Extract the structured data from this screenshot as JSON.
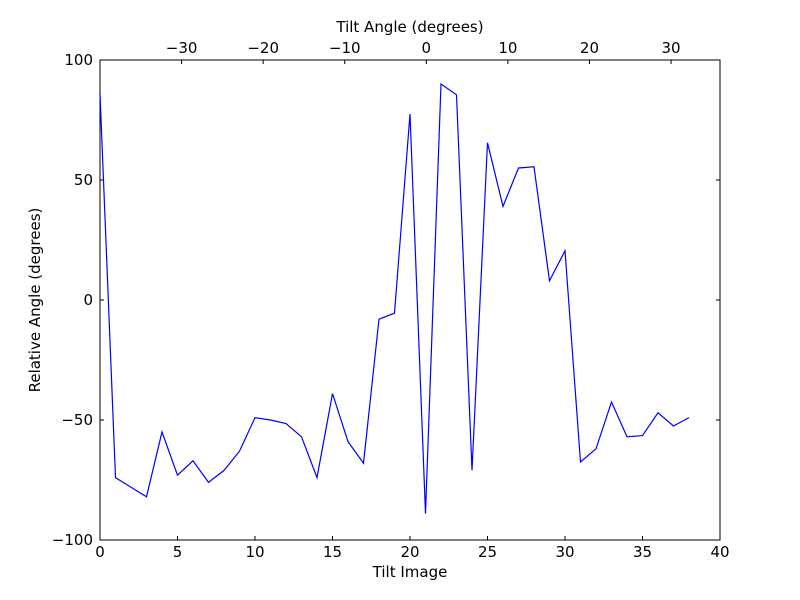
{
  "chart_data": {
    "type": "line",
    "title": "",
    "xlabel": "Tilt Image",
    "ylabel": "Relative Angle (degrees)",
    "top_xlabel": "Tilt Angle (degrees)",
    "xlim": [
      0,
      40
    ],
    "ylim": [
      -100,
      100
    ],
    "top_xlim": [
      -40,
      36
    ],
    "xticks": [
      0,
      5,
      10,
      15,
      20,
      25,
      30,
      35,
      40
    ],
    "yticks": [
      -100,
      -50,
      0,
      50,
      100
    ],
    "top_xticks": [
      -30,
      -20,
      -10,
      0,
      10,
      20,
      30
    ],
    "xtick_labels": [
      "0",
      "5",
      "10",
      "15",
      "20",
      "25",
      "30",
      "35",
      "40"
    ],
    "ytick_labels": [
      "−100",
      "−50",
      "0",
      "50",
      "100"
    ],
    "top_xtick_labels": [
      "−30",
      "−20",
      "−10",
      "0",
      "10",
      "20",
      "30"
    ],
    "grid": false,
    "line_color": "#0000ff",
    "series": [
      {
        "x": [
          0,
          1,
          2,
          3,
          4,
          5,
          6,
          7,
          8,
          9,
          10,
          11,
          12,
          13,
          14,
          15,
          16,
          17,
          18,
          19,
          20,
          21,
          22,
          23,
          24,
          25,
          26,
          27,
          28,
          29,
          30,
          31,
          32,
          33,
          34,
          35,
          36,
          37,
          38
        ],
        "values": [
          86,
          -74,
          -78,
          -82,
          -55,
          -73,
          -67,
          -76,
          -71,
          -63,
          -49,
          -50,
          -51.5,
          -57,
          -74,
          -39,
          -59,
          -68,
          -8,
          -5.5,
          77.5,
          -89,
          90,
          85.5,
          -71,
          65.5,
          39,
          55,
          55.5,
          8,
          20.5,
          -67.5,
          -62,
          -42.5,
          -57,
          -56.5,
          -47,
          -52.5,
          -49
        ]
      }
    ]
  }
}
